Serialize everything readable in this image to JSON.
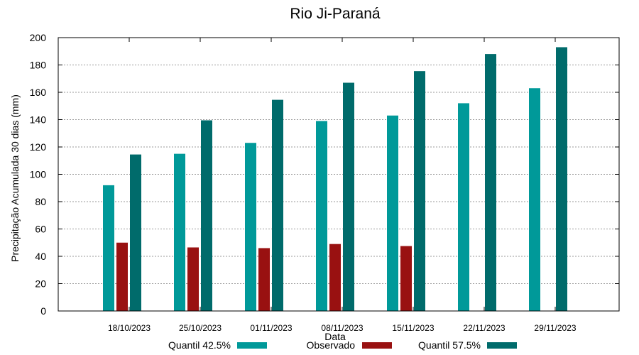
{
  "chart_data": {
    "type": "bar",
    "title": "Rio Ji-Paraná",
    "xlabel": "Data",
    "ylabel": "Precipitação Acumulada 30 dias (mm)",
    "ylim": [
      0,
      200
    ],
    "yticks": [
      0,
      20,
      40,
      60,
      80,
      100,
      120,
      140,
      160,
      180,
      200
    ],
    "grid": true,
    "legend_position": "bottom",
    "categories": [
      "18/10/2023",
      "25/10/2023",
      "01/11/2023",
      "08/11/2023",
      "15/11/2023",
      "22/11/2023",
      "29/11/2023"
    ],
    "series": [
      {
        "name": "Quantil 42.5%",
        "color": "#009999",
        "values": [
          92,
          115,
          123,
          139,
          143,
          152,
          163
        ]
      },
      {
        "name": "Observado",
        "color": "#991111",
        "values": [
          50,
          46.5,
          46,
          49,
          47.5,
          null,
          null
        ]
      },
      {
        "name": "Quantil 57.5%",
        "color": "#006b6b",
        "values": [
          114.5,
          139.5,
          154.5,
          167,
          175.5,
          188,
          193
        ]
      }
    ]
  }
}
